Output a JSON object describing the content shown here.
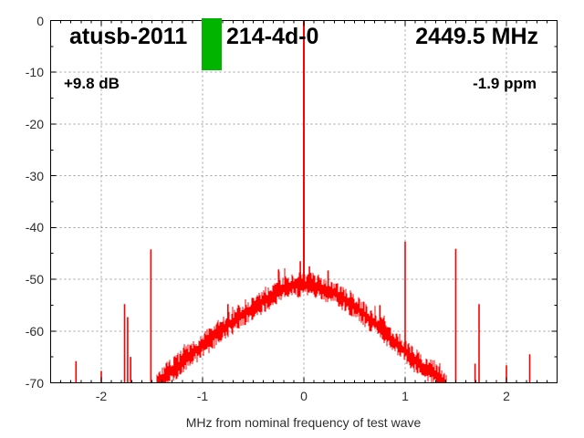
{
  "header": {
    "title_prefix": "atusb-2011",
    "title_suffix": "214-4d-0",
    "frequency_label": "2449.5 MHz",
    "gain_label": "+9.8 dB",
    "offset_label": "-1.9 ppm",
    "redaction_color": "#00b400"
  },
  "chart_data": {
    "type": "line",
    "title": "atusb-2011 214-4d-0 2449.5 MHz",
    "xlabel": "MHz from nominal frequency of test wave",
    "ylabel": "",
    "xlim": [
      -2.5,
      2.5
    ],
    "ylim": [
      -70,
      0
    ],
    "x_major_ticks": [
      -2,
      -1,
      0,
      1,
      2
    ],
    "x_minor_step": 0.1,
    "y_major_ticks": [
      0,
      -10,
      -20,
      -30,
      -40,
      -50,
      -60,
      -70
    ],
    "y_minor_step": 5,
    "grid": true,
    "legend_position": "none",
    "trace_color": "#ff0000",
    "grid_color": "#9e9e9e",
    "axis_color": "#000000",
    "noise_jitter_db": 3.2,
    "carrier": {
      "freq_mhz": 0.0,
      "peak_db": 0
    },
    "noise_pedestal_points": [
      [
        -1.46,
        -70.5
      ],
      [
        -1.38,
        -69.0
      ],
      [
        -1.3,
        -67.5
      ],
      [
        -1.2,
        -66.0
      ],
      [
        -1.1,
        -64.3
      ],
      [
        -1.0,
        -62.8
      ],
      [
        -0.9,
        -61.2
      ],
      [
        -0.8,
        -59.6
      ],
      [
        -0.7,
        -58.2
      ],
      [
        -0.6,
        -56.8
      ],
      [
        -0.5,
        -55.5
      ],
      [
        -0.4,
        -54.2
      ],
      [
        -0.3,
        -52.9
      ],
      [
        -0.2,
        -52.0
      ],
      [
        -0.1,
        -51.3
      ],
      [
        0.0,
        -50.9
      ],
      [
        0.1,
        -51.2
      ],
      [
        0.2,
        -51.8
      ],
      [
        0.3,
        -52.6
      ],
      [
        0.4,
        -53.8
      ],
      [
        0.5,
        -55.2
      ],
      [
        0.6,
        -56.8
      ],
      [
        0.7,
        -58.4
      ],
      [
        0.8,
        -60.2
      ],
      [
        0.9,
        -62.2
      ],
      [
        1.0,
        -64.0
      ],
      [
        1.1,
        -65.8
      ],
      [
        1.2,
        -67.2
      ],
      [
        1.3,
        -68.5
      ],
      [
        1.41,
        -70.5
      ]
    ],
    "spurs": [
      [
        -2.25,
        -65.8
      ],
      [
        -2.0,
        -67.7
      ],
      [
        -1.77,
        -54.8
      ],
      [
        -1.74,
        -57.3
      ],
      [
        -1.71,
        -65.0
      ],
      [
        -1.51,
        -44.2
      ],
      [
        -1.33,
        -66.0
      ],
      [
        -1.28,
        -65.0
      ],
      [
        -1.0,
        -63.3
      ],
      [
        -0.75,
        -54.8
      ],
      [
        -0.5,
        -54.1
      ],
      [
        -0.25,
        -48.1
      ],
      [
        -0.035,
        -46.5
      ],
      [
        0.055,
        -47.5
      ],
      [
        0.24,
        -48.3
      ],
      [
        0.49,
        -54.1
      ],
      [
        0.75,
        -55.0
      ],
      [
        1.0,
        -42.7
      ],
      [
        1.24,
        -66.2
      ],
      [
        1.5,
        -44.1
      ],
      [
        1.69,
        -66.3
      ],
      [
        1.73,
        -54.8
      ],
      [
        2.0,
        -66.6
      ],
      [
        2.23,
        -64.5
      ]
    ]
  }
}
